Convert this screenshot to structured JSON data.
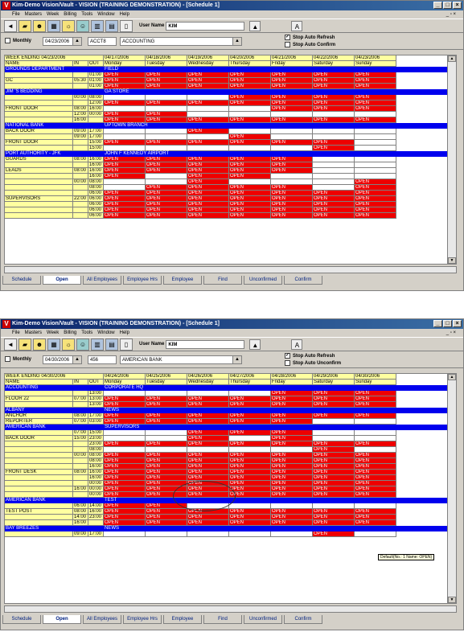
{
  "shot1": {
    "title": "Kim-Demo Vision/Vault - VISION (TRAINING DEMONSTRATION) - [Schedule 1]",
    "menu": [
      "File",
      "Masters",
      "Week",
      "Billing",
      "Tools",
      "Window",
      "Help"
    ],
    "user_label": "User Name",
    "user_value": "KIM",
    "monthly_label": "Monthly",
    "date": "04/23/2006",
    "acct_code": "ACCT8",
    "acct_name": "ACCOUNTING",
    "stop_refresh": "Stop Auto Refresh",
    "stop_confirm": "Stop Auto Confirm",
    "week_header": "WEEK ENDING 04/23/2006",
    "col_name": "NAME",
    "col_in": "IN",
    "col_out": "OUT",
    "dates": [
      "04/17/2006",
      "04/18/2006",
      "04/19/2006",
      "04/20/2006",
      "04/21/2006",
      "04/22/2006",
      "04/23/2006"
    ],
    "days": [
      "Monday",
      "Tuesday",
      "Wednesday",
      "Thursday",
      "Friday",
      "Saturday",
      "Sunday"
    ],
    "sections": [
      {
        "client": "GROUNDS DEPARTMENT",
        "site": "FIELD",
        "posts": [
          {
            "name": "GC",
            "in": "05:30",
            "rows": [
              {
                "out": "01:00",
                "c": [
                  1,
                  1,
                  1,
                  1,
                  1,
                  1,
                  1
                ]
              },
              {
                "out": "01:00",
                "c": [
                  1,
                  1,
                  1,
                  1,
                  1,
                  1,
                  1
                ]
              },
              {
                "out": "01:00",
                "c": [
                  1,
                  1,
                  1,
                  1,
                  1,
                  1,
                  1
                ]
              }
            ]
          }
        ]
      },
      {
        "client": "JIM 'S BEDDING",
        "site": "GA STORE",
        "posts": [
          {
            "name": "FRONT DOOR",
            "in": "",
            "rows": [
              {
                "in": "00:00",
                "out": "08:00",
                "c": [
                  0,
                  0,
                  0,
                  1,
                  1,
                  1,
                  1
                ]
              },
              {
                "in": "",
                "out": "12:00",
                "c": [
                  1,
                  1,
                  1,
                  1,
                  1,
                  1,
                  1
                ]
              },
              {
                "in": "08:00",
                "out": "16:00",
                "c": [
                  0,
                  0,
                  0,
                  0,
                  1,
                  1,
                  1
                ]
              },
              {
                "in": "12:00",
                "out": "00:00",
                "c": [
                  1,
                  1,
                  0,
                  0,
                  0,
                  0,
                  0
                ]
              },
              {
                "in": "16:00",
                "out": "",
                "c": [
                  1,
                  1,
                  1,
                  1,
                  1,
                  1,
                  1
                ]
              }
            ]
          }
        ]
      },
      {
        "client": "NATIONAL BANK",
        "site": "UPTOWN BRANCH",
        "posts": [
          {
            "name": "BACK DOOR",
            "in": "09:00",
            "rows": [
              {
                "out": "17:00",
                "c": [
                  0,
                  0,
                  1,
                  0,
                  0,
                  0,
                  0
                ]
              }
            ]
          },
          {
            "name": "FRONT DOOR",
            "in": "11:00",
            "rows": [
              {
                "in": "09:00",
                "out": "17:00",
                "c": [
                  0,
                  0,
                  0,
                  1,
                  0,
                  0,
                  0
                ]
              },
              {
                "in": "",
                "out": "15:00",
                "c": [
                  1,
                  1,
                  1,
                  1,
                  1,
                  1,
                  0
                ]
              },
              {
                "in": "",
                "out": "15:00",
                "c": [
                  0,
                  0,
                  0,
                  0,
                  0,
                  1,
                  0
                ]
              }
            ]
          }
        ]
      },
      {
        "client": "PORT AUTHORITY - JFK",
        "site": "JOHN F KENNEDY AIRPORT",
        "posts": [
          {
            "name": "GUARDS",
            "in": "08:00",
            "rows": [
              {
                "out": "16:00",
                "c": [
                  1,
                  1,
                  1,
                  1,
                  1,
                  0,
                  0
                ]
              },
              {
                "out": "16:00",
                "c": [
                  1,
                  1,
                  1,
                  1,
                  1,
                  0,
                  0
                ]
              }
            ]
          },
          {
            "name": "LEADS",
            "in": "08:00",
            "rows": [
              {
                "out": "16:00",
                "c": [
                  1,
                  1,
                  1,
                  1,
                  1,
                  0,
                  0
                ]
              },
              {
                "out": "16:00",
                "c": [
                  1,
                  0,
                  1,
                  1,
                  0,
                  0,
                  0
                ]
              }
            ]
          },
          {
            "name": "SUPERVISORS",
            "in": "",
            "rows": [
              {
                "in": "00:00",
                "out": "08:00",
                "c": [
                  0,
                  0,
                  1,
                  0,
                  0,
                  0,
                  1
                ]
              },
              {
                "in": "",
                "out": "08:00",
                "c": [
                  0,
                  1,
                  1,
                  1,
                  1,
                  0,
                  1
                ]
              },
              {
                "in": "",
                "out": "06:00",
                "c": [
                  1,
                  1,
                  1,
                  1,
                  1,
                  1,
                  1
                ]
              },
              {
                "in": "22:00",
                "out": "06:00",
                "c": [
                  1,
                  1,
                  1,
                  1,
                  1,
                  1,
                  1
                ]
              },
              {
                "in": "",
                "out": "06:00",
                "c": [
                  1,
                  1,
                  1,
                  1,
                  1,
                  1,
                  1
                ]
              },
              {
                "in": "",
                "out": "06:00",
                "c": [
                  1,
                  1,
                  1,
                  1,
                  1,
                  1,
                  1
                ]
              },
              {
                "in": "",
                "out": "06:00",
                "c": [
                  1,
                  1,
                  1,
                  1,
                  1,
                  1,
                  1
                ]
              }
            ]
          }
        ]
      }
    ],
    "tabs": [
      "Schedule",
      "Open",
      "All Employees",
      "Employee Hrs",
      "Employee",
      "Find",
      "Unconfirmed",
      "Confirm"
    ]
  },
  "shot2": {
    "title": "Kim-Demo Vision/Vault - VISION (TRAINING DEMONSTRATION) - [Schedule 1]",
    "menu": [
      "File",
      "Masters",
      "Week",
      "Billing",
      "Tools",
      "Window",
      "Help"
    ],
    "user_label": "User Name",
    "user_value": "KIM",
    "monthly_label": "Monthly",
    "date": "04/30/2006",
    "acct_code": "456",
    "acct_name": "AMERICAN BANK",
    "stop_refresh": "Stop Auto Refresh",
    "stop_confirm": "Stop Auto Unconfirm",
    "week_header": "WEEK ENDING 04/30/2006",
    "col_name": "NAME",
    "col_in": "IN",
    "col_out": "OUT",
    "dates": [
      "04/24/2006",
      "04/25/2006",
      "04/26/2006",
      "04/27/2006",
      "04/28/2006",
      "04/29/2006",
      "04/30/2006"
    ],
    "days": [
      "Monday",
      "Tuesday",
      "Wednesday",
      "Thursday",
      "Friday",
      "Saturday",
      "Sunday"
    ],
    "tooltip": "Default(No.: 1 Name: OPEN)",
    "sections": [
      {
        "client": "ACCOUNTING",
        "site": "CORPORATE HQ",
        "posts": [
          {
            "name": "FLOOR 22",
            "in": "07:00",
            "rows": [
              {
                "out": "13:00",
                "c": [
                  0,
                  0,
                  0,
                  0,
                  1,
                  1,
                  1
                ]
              },
              {
                "out": "13:00",
                "c": [
                  1,
                  1,
                  1,
                  1,
                  1,
                  1,
                  1
                ]
              },
              {
                "out": "13:00",
                "c": [
                  1,
                  1,
                  1,
                  1,
                  1,
                  1,
                  1
                ]
              }
            ]
          }
        ]
      },
      {
        "client": "ALBANY",
        "site": "NEWS",
        "posts": [
          {
            "name": "ANCHOR",
            "in": "08:00",
            "rows": [
              {
                "out": "17:00",
                "c": [
                  1,
                  1,
                  1,
                  1,
                  1,
                  1,
                  1
                ]
              }
            ]
          },
          {
            "name": "REPORTER",
            "in": "07:00",
            "rows": [
              {
                "out": "03:00",
                "c": [
                  1,
                  1,
                  1,
                  1,
                  1,
                  0,
                  0
                ]
              }
            ]
          }
        ]
      },
      {
        "client": "AMERICAN BANK",
        "site": "SUPERVISORS",
        "posts": [
          {
            "name": "BACK DOOR",
            "in": "",
            "rows": [
              {
                "in": "07:00",
                "out": "15:00",
                "c": [
                  0,
                  0,
                  1,
                  1,
                  1,
                  0,
                  0
                ]
              },
              {
                "in": "15:00",
                "out": "23:00",
                "c": [
                  0,
                  0,
                  1,
                  0,
                  1,
                  0,
                  0
                ]
              },
              {
                "in": "",
                "out": "23:00",
                "c": [
                  1,
                  1,
                  1,
                  1,
                  1,
                  1,
                  1
                ]
              }
            ]
          },
          {
            "name": "FRONT DESK",
            "in": "",
            "rows": [
              {
                "in": "",
                "out": "08:00",
                "c": [
                  0,
                  0,
                  0,
                  0,
                  0,
                  1,
                  0
                ]
              },
              {
                "in": "00:00",
                "out": "08:00",
                "c": [
                  1,
                  1,
                  1,
                  1,
                  1,
                  1,
                  1
                ]
              },
              {
                "in": "",
                "out": "08:00",
                "c": [
                  1,
                  1,
                  1,
                  1,
                  1,
                  1,
                  1
                ]
              },
              {
                "in": "",
                "out": "16:00",
                "c": [
                  1,
                  1,
                  1,
                  1,
                  1,
                  1,
                  1
                ]
              },
              {
                "in": "08:00",
                "out": "16:00",
                "c": [
                  1,
                  1,
                  1,
                  1,
                  1,
                  1,
                  1
                ]
              },
              {
                "in": "",
                "out": "16:00",
                "c": [
                  1,
                  1,
                  1,
                  1,
                  1,
                  1,
                  1
                ]
              },
              {
                "in": "",
                "out": "00:00",
                "c": [
                  1,
                  1,
                  1,
                  1,
                  1,
                  1,
                  1
                ]
              },
              {
                "in": "16:00",
                "out": "00:00",
                "c": [
                  1,
                  1,
                  1,
                  1,
                  1,
                  1,
                  1
                ]
              },
              {
                "in": "",
                "out": "00:00",
                "c": [
                  1,
                  1,
                  1,
                  1,
                  1,
                  1,
                  1
                ]
              }
            ]
          }
        ]
      },
      {
        "client": "AMERICAN BANK",
        "site": "TEST",
        "posts": [
          {
            "name": "TEST POST",
            "in": "",
            "rows": [
              {
                "in": "06:00",
                "out": "14:00",
                "c": [
                  1,
                  1,
                  0,
                  0,
                  0,
                  0,
                  0
                ]
              },
              {
                "in": "08:00",
                "out": "16:00",
                "c": [
                  1,
                  1,
                  1,
                  1,
                  1,
                  1,
                  1
                ]
              },
              {
                "in": "14:00",
                "out": "23:00",
                "c": [
                  1,
                  1,
                  1,
                  1,
                  1,
                  1,
                  1
                ]
              },
              {
                "in": "16:00",
                "out": "",
                "c": [
                  1,
                  1,
                  1,
                  1,
                  1,
                  1,
                  1
                ]
              }
            ]
          }
        ]
      },
      {
        "client": "BAY BREEZES",
        "site": "NEWS",
        "posts": [
          {
            "name": "",
            "in": "",
            "rows": [
              {
                "in": "09:00",
                "out": "17:00",
                "c": [
                  0,
                  0,
                  0,
                  0,
                  0,
                  1,
                  0
                ]
              }
            ]
          }
        ]
      }
    ],
    "tabs": [
      "Schedule",
      "Open",
      "All Employees",
      "Employee Hrs",
      "Employee",
      "Find",
      "Unconfirmed",
      "Confirm"
    ]
  },
  "open_label": "OPEN",
  "icons": [
    "back-arrow-icon",
    "folder-open-icon",
    "people-icon",
    "calendar-icon",
    "sun-icon",
    "people-icon",
    "bank-icon",
    "grid-icon",
    "page-icon",
    "dropdown-arrow-icon",
    "lookup-icon"
  ]
}
